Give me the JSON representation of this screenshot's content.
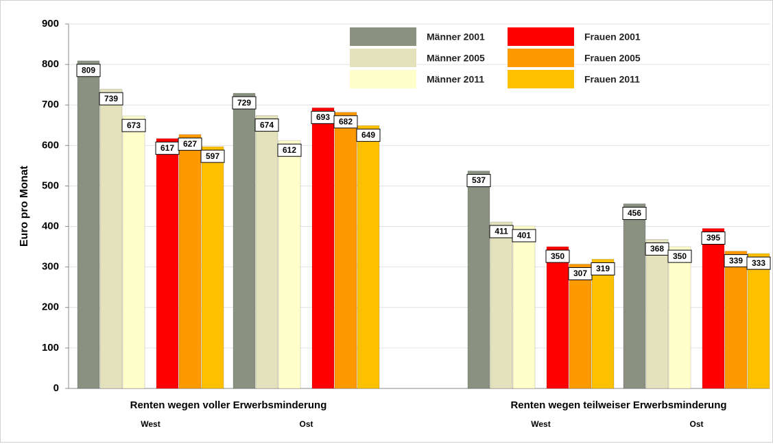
{
  "chart_data": {
    "type": "bar",
    "ylabel": "Euro pro Monat",
    "groups": [
      "Renten wegen voller Erwerbsminderung",
      "Renten wegen teilweiser Erwerbsminderung"
    ],
    "categories": [
      "West",
      "Ost",
      "West",
      "Ost"
    ],
    "series": [
      {
        "name": "Männer 2001",
        "color": "#8a9181",
        "values": [
          809,
          729,
          537,
          456
        ]
      },
      {
        "name": "Männer 2005",
        "color": "#e3e2bd",
        "values": [
          739,
          674,
          411,
          368
        ]
      },
      {
        "name": "Männer 2011",
        "color": "#ffffcc",
        "values": [
          673,
          612,
          401,
          350
        ]
      },
      {
        "name": "Frauen 2001",
        "color": "#ff0000",
        "values": [
          617,
          693,
          350,
          395
        ]
      },
      {
        "name": "Frauen 2005",
        "color": "#ff9900",
        "values": [
          627,
          682,
          307,
          339
        ]
      },
      {
        "name": "Frauen 2011",
        "color": "#ffc000",
        "values": [
          597,
          649,
          319,
          333
        ]
      }
    ],
    "ylim": [
      0,
      900
    ],
    "yticks": [
      0,
      100,
      200,
      300,
      400,
      500,
      600,
      700,
      800,
      900
    ],
    "grid": true,
    "legend": "top"
  }
}
